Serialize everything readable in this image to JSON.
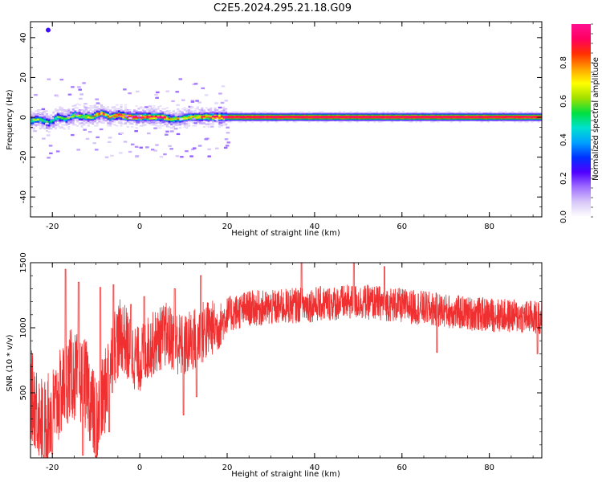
{
  "title": "C2E5.2024.295.21.18.G09",
  "colors": {
    "background": "#ffffff",
    "snr_line": "#f03030",
    "axis": "#000000"
  },
  "spectrogram": {
    "xlabel": "Height of straight line (km)",
    "ylabel": "Frequency (Hz)",
    "xlim": [
      -25,
      92
    ],
    "ylim": [
      -50,
      48
    ],
    "xticks": [
      "-20",
      "0",
      "20",
      "40",
      "60",
      "80"
    ],
    "xtick_values": [
      -20,
      0,
      20,
      40,
      60,
      80
    ],
    "yticks": [
      "-40",
      "-20",
      "0",
      "20",
      "40"
    ],
    "ytick_values": [
      -40,
      -20,
      0,
      20,
      40
    ],
    "colorbar": {
      "label": "Normalized spectral amplitude",
      "range": [
        0.0,
        1.0
      ],
      "ticks": [
        "0.0",
        "0.2",
        "0.4",
        "0.6",
        "0.8"
      ],
      "tick_values": [
        0.0,
        0.2,
        0.4,
        0.6,
        0.8
      ],
      "colormap": [
        "#ffffff",
        "#d8c8f8",
        "#a070ff",
        "#5000ff",
        "#0030ff",
        "#00a0ff",
        "#00e0d0",
        "#00e040",
        "#a0e000",
        "#ffff00",
        "#ffa000",
        "#ff3000",
        "#ff0060",
        "#ff1090"
      ]
    }
  },
  "chart_data": [
    {
      "type": "heatmap",
      "title": "C2E5.2024.295.21.18.G09",
      "xlabel": "Height of straight line (km)",
      "ylabel": "Frequency (Hz)",
      "xlim": [
        -25,
        92
      ],
      "ylim": [
        -50,
        48
      ],
      "colorbar_label": "Normalized spectral amplitude",
      "ridge": {
        "description_values": "dominant frequency vs height",
        "x": [
          -25,
          -23,
          -21,
          -19,
          -17,
          -15,
          -13,
          -11,
          -9,
          -7,
          -5,
          -3,
          -1,
          1,
          3,
          5,
          7,
          9,
          11,
          13,
          15,
          17,
          19,
          30,
          50,
          70,
          91
        ],
        "y": [
          -2,
          -1,
          -3,
          0,
          -1,
          1,
          0,
          0,
          2,
          0,
          1,
          0,
          0,
          0,
          0,
          0,
          -1,
          -1,
          0,
          0,
          0,
          0,
          0,
          0,
          0,
          0,
          0
        ],
        "amplitude": [
          0.5,
          0.55,
          0.35,
          0.45,
          0.5,
          0.55,
          0.55,
          0.6,
          0.7,
          0.75,
          0.8,
          0.9,
          0.95,
          0.95,
          0.95,
          0.9,
          0.6,
          0.55,
          0.65,
          0.75,
          0.8,
          0.9,
          0.95,
          0.97,
          0.98,
          0.98,
          0.95
        ]
      }
    },
    {
      "type": "line",
      "xlabel": "Height of straight line (km)",
      "ylabel": "SNR (10 * v/v)",
      "xlim": [
        -25,
        92
      ],
      "ylim": [
        0,
        1500
      ],
      "xticks": [
        "-20",
        "0",
        "20",
        "40",
        "60",
        "80"
      ],
      "xtick_values": [
        -20,
        0,
        20,
        40,
        60,
        80
      ],
      "yticks": [
        "500",
        "1000",
        "1500"
      ],
      "ytick_values": [
        500,
        1000,
        1500
      ],
      "trend": {
        "x": [
          -25,
          -22,
          -20,
          -18,
          -16,
          -14,
          -12,
          -10,
          -8,
          -6,
          -4,
          -2,
          0,
          2,
          4,
          6,
          8,
          10,
          12,
          14,
          16,
          18,
          20,
          25,
          30,
          35,
          40,
          45,
          50,
          55,
          60,
          65,
          70,
          75,
          80,
          85,
          91
        ],
        "y": [
          500,
          250,
          350,
          500,
          650,
          600,
          550,
          250,
          500,
          850,
          950,
          800,
          750,
          850,
          900,
          950,
          900,
          850,
          900,
          950,
          1000,
          1000,
          1100,
          1150,
          1150,
          1170,
          1180,
          1190,
          1200,
          1190,
          1170,
          1150,
          1130,
          1110,
          1100,
          1090,
          1080
        ]
      },
      "noise_amplitude": {
        "x": [
          -25,
          -10,
          0,
          15,
          20,
          91
        ],
        "y": [
          350,
          350,
          250,
          250,
          140,
          130
        ]
      },
      "spikes": [
        {
          "x": -17,
          "y": 1450
        },
        {
          "x": -14,
          "y": 1350
        },
        {
          "x": -9,
          "y": 1310
        },
        {
          "x": -6,
          "y": 1330
        },
        {
          "x": -2,
          "y": 1180
        },
        {
          "x": 1,
          "y": 1240
        },
        {
          "x": 8,
          "y": 1300
        },
        {
          "x": 14,
          "y": 1400
        },
        {
          "x": 37,
          "y": 1500
        },
        {
          "x": 49,
          "y": 1520
        },
        {
          "x": 56,
          "y": 1470
        }
      ],
      "dips": [
        {
          "x": -22,
          "y": 20
        },
        {
          "x": -20,
          "y": 30
        },
        {
          "x": -13,
          "y": 20
        },
        {
          "x": -10,
          "y": 10
        },
        {
          "x": -7,
          "y": 200
        },
        {
          "x": 10,
          "y": 330
        },
        {
          "x": 13,
          "y": 470
        },
        {
          "x": 68,
          "y": 810
        },
        {
          "x": 91,
          "y": 800
        }
      ],
      "series": [
        {
          "values_note": "",
          "color": "#f03030"
        }
      ]
    }
  ]
}
